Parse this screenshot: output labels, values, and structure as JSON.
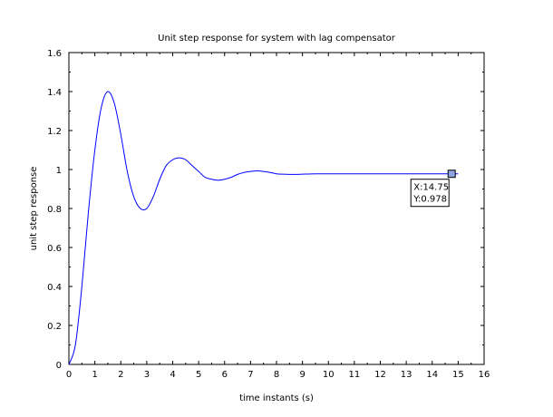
{
  "chart_data": {
    "type": "line",
    "title": "Unit step response for system with lag compensator",
    "xlabel": "time instants (s)",
    "ylabel": "unit step response",
    "xlim": [
      0,
      16
    ],
    "ylim": [
      0,
      1.6
    ],
    "x_ticks": [
      0,
      1,
      2,
      3,
      4,
      5,
      6,
      7,
      8,
      9,
      10,
      11,
      12,
      13,
      14,
      15,
      16
    ],
    "y_ticks": [
      0,
      0.2,
      0.4,
      0.6,
      0.8,
      1,
      1.2,
      1.4,
      1.6
    ],
    "y_tick_labels": [
      "0",
      "0.2",
      "0.4",
      "0.6",
      "0.8",
      "1",
      "1.2",
      "1.4",
      "1.6"
    ],
    "grid": false,
    "line_color": "#0000ff",
    "series": [
      {
        "x": [
          0,
          0.25,
          0.5,
          0.75,
          1.0,
          1.25,
          1.5,
          1.75,
          2.0,
          2.25,
          2.5,
          2.75,
          3.0,
          3.25,
          3.5,
          3.75,
          4.0,
          4.25,
          4.5,
          4.75,
          5.0,
          5.25,
          5.5,
          5.75,
          6.0,
          6.25,
          6.5,
          6.75,
          7.0,
          7.25,
          7.5,
          7.75,
          8.0,
          8.25,
          8.5,
          8.75,
          9.0,
          9.25,
          9.5,
          10.0,
          10.5,
          11.0,
          11.5,
          12.0,
          12.5,
          13.0,
          13.5,
          14.0,
          14.5,
          14.75,
          15.0
        ],
        "y": [
          0,
          0.1,
          0.4,
          0.78,
          1.1,
          1.32,
          1.4,
          1.34,
          1.18,
          0.99,
          0.86,
          0.8,
          0.8,
          0.86,
          0.95,
          1.02,
          1.05,
          1.06,
          1.05,
          1.02,
          0.99,
          0.96,
          0.95,
          0.945,
          0.95,
          0.96,
          0.975,
          0.985,
          0.99,
          0.993,
          0.99,
          0.985,
          0.978,
          0.976,
          0.975,
          0.975,
          0.976,
          0.977,
          0.978,
          0.978,
          0.978,
          0.978,
          0.978,
          0.978,
          0.978,
          0.978,
          0.978,
          0.978,
          0.978,
          0.978,
          0.978
        ]
      }
    ],
    "datatip": {
      "x": 14.75,
      "y": 0.978,
      "label_x": "X:14.75",
      "label_y": "Y:0.978",
      "marker_color": "#8ea2dd"
    }
  }
}
